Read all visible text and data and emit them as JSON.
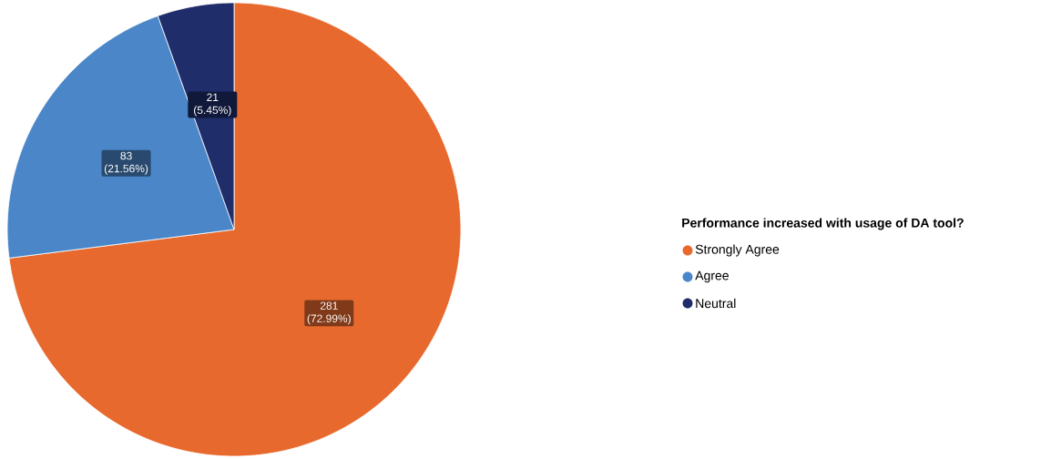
{
  "chart_data": {
    "type": "pie",
    "legend_title": "Performance increased with usage of DA tool?",
    "categories": [
      "Strongly Agree",
      "Agree",
      "Neutral"
    ],
    "values": [
      281,
      83,
      21
    ],
    "colors": [
      "#e8692e",
      "#4a86c8",
      "#1f2d6b"
    ],
    "value_labels": [
      "281 (72.99%)",
      "83 (21.56%)",
      "21 (5.45%)"
    ],
    "legend": "right"
  }
}
